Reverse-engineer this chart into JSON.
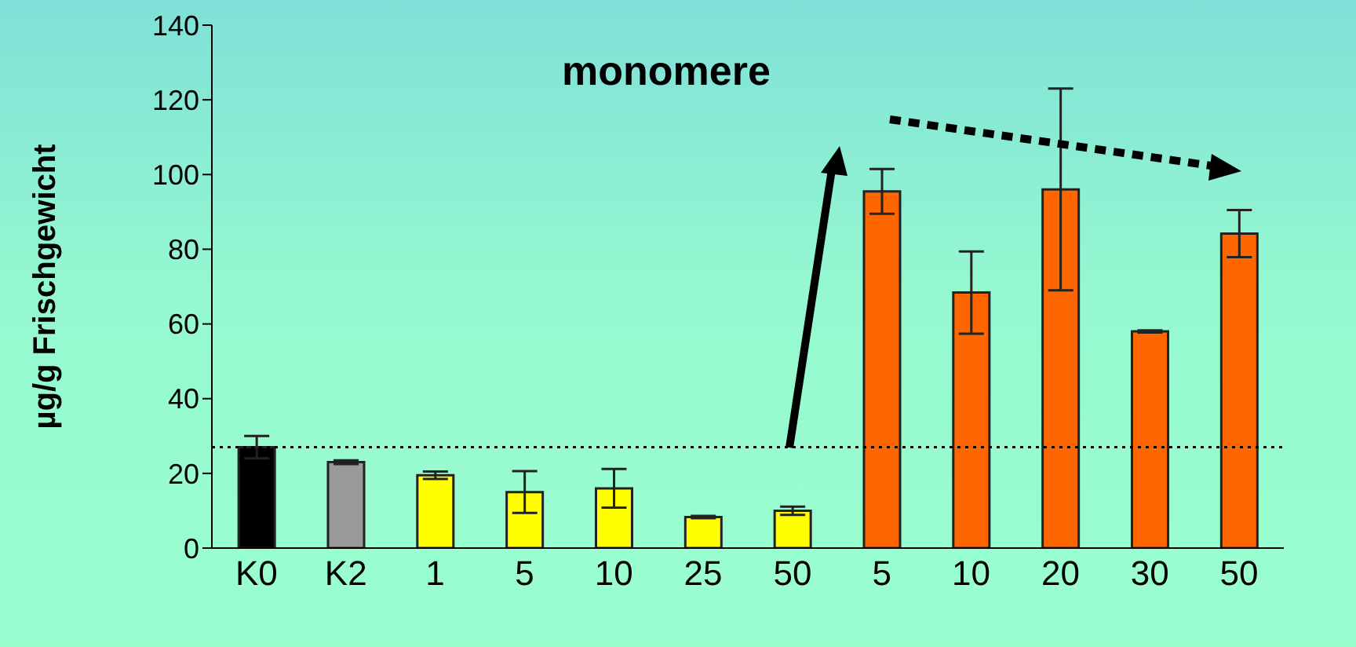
{
  "chart_data": {
    "type": "bar",
    "ylabel": "µg/g Frischgewicht",
    "annotations": [
      "monomere"
    ],
    "categories": [
      "K0",
      "K2",
      "1",
      "5",
      "10",
      "25",
      "50",
      "5",
      "10",
      "20",
      "30",
      "50"
    ],
    "values": [
      27,
      23,
      19.5,
      15,
      16,
      8.3,
      10,
      95.5,
      68.4,
      96,
      58,
      84.2
    ],
    "errors": [
      3,
      0.5,
      1,
      5.6,
      5.2,
      0.3,
      1.1,
      6,
      11,
      27,
      0.3,
      6.3
    ],
    "colors": [
      "#000000",
      "#999999",
      "#ffff00",
      "#ffff00",
      "#ffff00",
      "#ffff00",
      "#ffff00",
      "#ff6600",
      "#ff6600",
      "#ff6600",
      "#ff6600",
      "#ff6600"
    ],
    "ylim": [
      0,
      140
    ],
    "yticks": [
      0,
      20,
      40,
      60,
      80,
      100,
      120,
      140
    ],
    "ref_lines": [
      {
        "axis": "y",
        "value": 27,
        "line_style": "dotted",
        "color": "#000000"
      }
    ],
    "grid": false,
    "legend": false
  }
}
